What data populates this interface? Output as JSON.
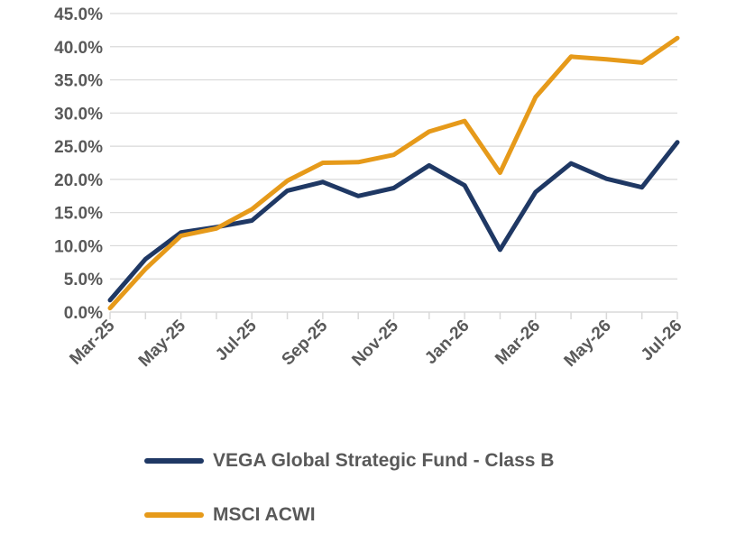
{
  "chart_data": {
    "type": "line",
    "title": "",
    "xlabel": "",
    "ylabel": "",
    "x": [
      "Mar-25",
      "Apr-25",
      "May-25",
      "Jun-25",
      "Jul-25",
      "Aug-25",
      "Sep-25",
      "Oct-25",
      "Nov-25",
      "Dec-25",
      "Jan-26",
      "Feb-26",
      "Mar-26",
      "Apr-26",
      "May-26",
      "Jun-26",
      "Jul-26"
    ],
    "x_tick_labels": [
      "Mar-25",
      "May-25",
      "Jul-25",
      "Sep-25",
      "Nov-25",
      "Jan-26",
      "Mar-26",
      "May-26",
      "Jul-26"
    ],
    "y_tick_labels": [
      "0.0%",
      "5.0%",
      "10.0%",
      "15.0%",
      "20.0%",
      "25.0%",
      "30.0%",
      "35.0%",
      "40.0%",
      "45.0%"
    ],
    "ylim": [
      0,
      45
    ],
    "y_unit": "%",
    "grid": true,
    "legend_position": "bottom",
    "series": [
      {
        "name": "VEGA Global Strategic Fund - Class B",
        "color": "#1F3864",
        "values": [
          1.8,
          8.0,
          12.0,
          12.8,
          13.8,
          18.3,
          19.6,
          17.5,
          18.7,
          22.1,
          19.1,
          9.4,
          18.1,
          22.4,
          20.1,
          18.8,
          25.6
        ]
      },
      {
        "name": "MSCI ACWI",
        "color": "#E69A1A",
        "values": [
          0.6,
          6.5,
          11.5,
          12.6,
          15.5,
          19.8,
          22.5,
          22.6,
          23.7,
          27.2,
          28.8,
          21.0,
          32.4,
          38.5,
          38.1,
          37.6,
          41.3
        ]
      }
    ]
  }
}
